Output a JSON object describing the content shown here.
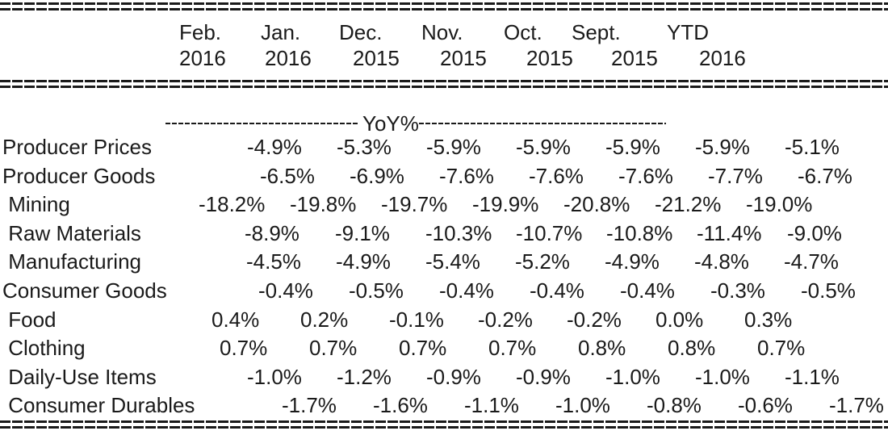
{
  "header": {
    "columns": [
      {
        "line1": "Feb.",
        "line2": "2016"
      },
      {
        "line1": "Jan.",
        "line2": "2016"
      },
      {
        "line1": "Dec.",
        "line2": "2015"
      },
      {
        "line1": "Nov.",
        "line2": "2015"
      },
      {
        "line1": "Oct.",
        "line2": "2015"
      },
      {
        "line1": "Sept.",
        "line2": "2015"
      },
      {
        "line1": "YTD",
        "line2": "2016"
      }
    ]
  },
  "section": {
    "label": "YoY%"
  },
  "rows": [
    {
      "label": "Producer Prices",
      "values": [
        "-4.9%",
        "-5.3%",
        "-5.9%",
        "-5.9%",
        "-5.9%",
        "-5.9%",
        "-5.1%"
      ]
    },
    {
      "label": "Producer Goods",
      "values": [
        "-6.5%",
        "-6.9%",
        "-7.6%",
        "-7.6%",
        "-7.6%",
        "-7.7%",
        "-6.7%"
      ]
    },
    {
      "label": " Mining",
      "values": [
        "-18.2%",
        "-19.8%",
        "-19.7%",
        "-19.9%",
        "-20.8%",
        "-21.2%",
        "-19.0%"
      ]
    },
    {
      "label": " Raw Materials",
      "values": [
        "-8.9%",
        "-9.1%",
        "-10.3%",
        "-10.7%",
        "-10.8%",
        "-11.4%",
        "-9.0%"
      ]
    },
    {
      "label": " Manufacturing",
      "values": [
        "-4.5%",
        "-4.9%",
        "-5.4%",
        "-5.2%",
        "-4.9%",
        "-4.8%",
        "-4.7%"
      ]
    },
    {
      "label": "Consumer Goods",
      "values": [
        "-0.4%",
        "-0.5%",
        "-0.4%",
        "-0.4%",
        "-0.4%",
        "-0.3%",
        "-0.5%"
      ]
    },
    {
      "label": " Food",
      "values": [
        "0.4%",
        "0.2%",
        "-0.1%",
        "-0.2%",
        "-0.2%",
        "0.0%",
        "0.3%"
      ]
    },
    {
      "label": " Clothing",
      "values": [
        "0.7%",
        "0.7%",
        "0.7%",
        "0.7%",
        "0.8%",
        "0.8%",
        "0.7%"
      ]
    },
    {
      "label": " Daily-Use Items",
      "values": [
        "-1.0%",
        "-1.2%",
        "-0.9%",
        "-0.9%",
        "-1.0%",
        "-1.0%",
        "-1.1%"
      ]
    },
    {
      "label": " Consumer Durables",
      "values": [
        "-1.7%",
        "-1.6%",
        "-1.1%",
        "-1.0%",
        "-0.8%",
        "-0.6%",
        "-1.7%"
      ]
    }
  ]
}
